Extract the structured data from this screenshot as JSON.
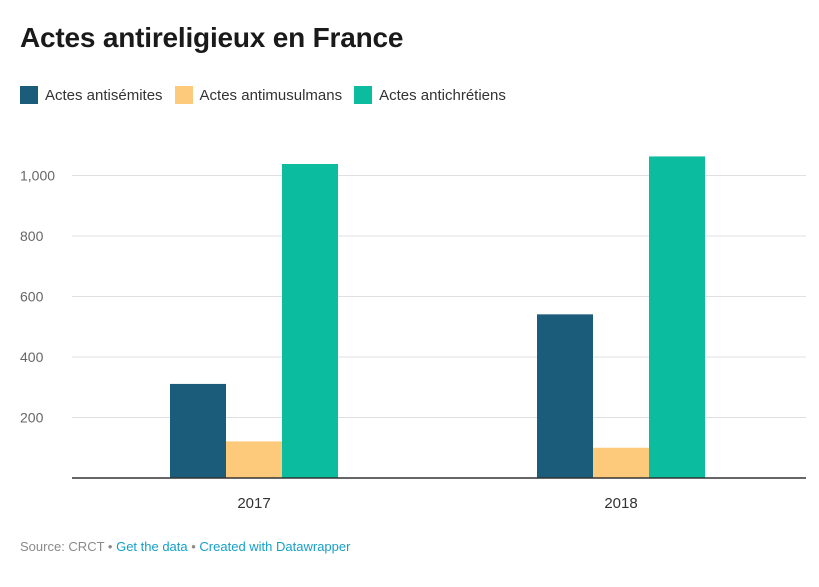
{
  "colors": {
    "antisemites": "#1a5c7a",
    "antimusulmans": "#fdc97a",
    "antichretiens": "#0bbd9e",
    "grid": "#e0e0e0",
    "axis": "#333333"
  },
  "footer": {
    "source": "Source: CRCT",
    "sep1": " • ",
    "get_data": "Get the data",
    "sep2": " • ",
    "created": "Created with Datawrapper"
  },
  "chart_data": {
    "type": "bar",
    "title": "Actes antireligieux en France",
    "categories": [
      "2017",
      "2018"
    ],
    "series": [
      {
        "name": "Actes antisémites",
        "values": [
          311,
          541
        ],
        "color_key": "antisemites"
      },
      {
        "name": "Actes antimusulmans",
        "values": [
          121,
          100
        ],
        "color_key": "antimusulmans"
      },
      {
        "name": "Actes antichrétiens",
        "values": [
          1038,
          1063
        ],
        "color_key": "antichretiens"
      }
    ],
    "yticks": [
      {
        "value": 200,
        "label": "200"
      },
      {
        "value": 400,
        "label": "400"
      },
      {
        "value": 600,
        "label": "600"
      },
      {
        "value": 800,
        "label": "800"
      },
      {
        "value": 1000,
        "label": "1,000"
      }
    ],
    "ylim": [
      0,
      1100
    ],
    "grid": true,
    "legend_position": "top-left"
  }
}
